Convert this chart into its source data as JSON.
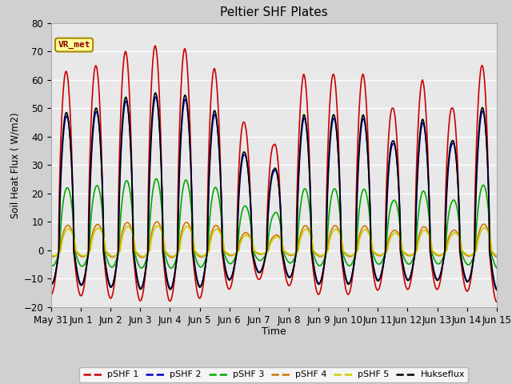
{
  "title": "Peltier SHF Plates",
  "xlabel": "Time",
  "ylabel": "Soil Heat Flux ( W/m2)",
  "ylim": [
    -20,
    80
  ],
  "xlim_days": [
    0,
    15
  ],
  "fig_facecolor": "#d0d0d0",
  "ax_facecolor": "#e8e8e8",
  "grid_color": "white",
  "series": [
    {
      "label": "pSHF 1",
      "color": "#cc0000",
      "lw": 1.2,
      "amp_scale": 1.0,
      "phase": 0.0
    },
    {
      "label": "pSHF 2",
      "color": "#0000cc",
      "lw": 1.2,
      "amp_scale": 0.75,
      "phase": 0.018
    },
    {
      "label": "pSHF 3",
      "color": "#00aa00",
      "lw": 1.2,
      "amp_scale": 0.35,
      "phase": 0.04
    },
    {
      "label": "pSHF 4",
      "color": "#cc7700",
      "lw": 1.2,
      "amp_scale": 0.14,
      "phase": 0.06
    },
    {
      "label": "pSHF 5",
      "color": "#cccc00",
      "lw": 1.2,
      "amp_scale": 0.12,
      "phase": 0.08
    },
    {
      "label": "Hukseflux",
      "color": "#000000",
      "lw": 1.2,
      "amp_scale": 0.77,
      "phase": 0.01
    }
  ],
  "vr_met_label": "VR_met",
  "vr_met_bg": "#ffff99",
  "vr_met_edge": "#aa8800",
  "tick_labels": [
    "May 31",
    "Jun 1",
    "Jun 2",
    "Jun 3",
    "Jun 4",
    "Jun 5",
    "Jun 6",
    "Jun 7",
    "Jun 8",
    "Jun 9",
    "Jun 10",
    "Jun 11",
    "Jun 12",
    "Jun 13",
    "Jun 14",
    "Jun 15"
  ],
  "tick_positions": [
    0,
    1,
    2,
    3,
    4,
    5,
    6,
    7,
    8,
    9,
    10,
    11,
    12,
    13,
    14,
    15
  ],
  "day_peaks": [
    63,
    65,
    70,
    72,
    71,
    64,
    45,
    37,
    62,
    62,
    62,
    50,
    60,
    50,
    65
  ]
}
